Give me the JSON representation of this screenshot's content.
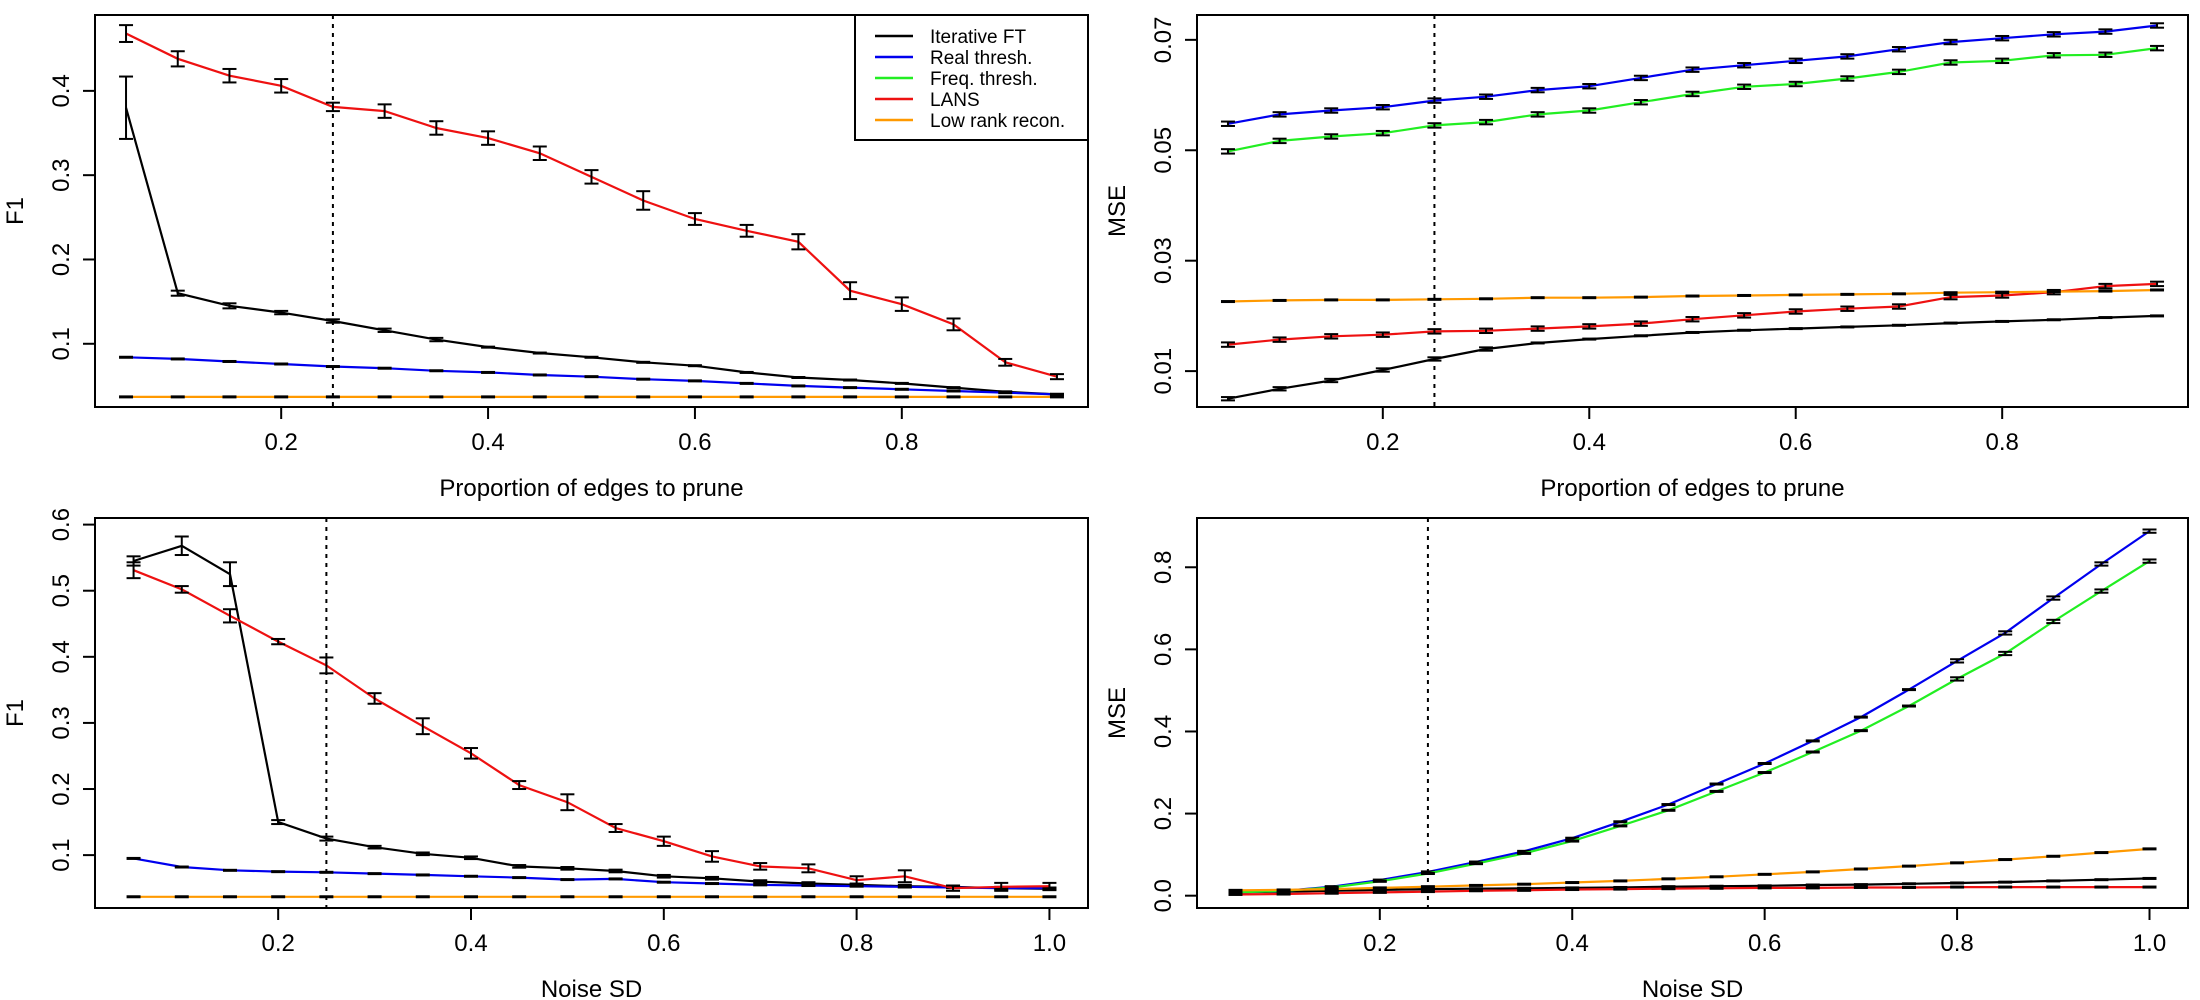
{
  "colors": {
    "Iterative FT": "#000000",
    "Real thresh.": "#0000ee",
    "Freq. thresh.": "#22ee22",
    "LANS": "#ee1111",
    "Low rank recon.": "#ff9900"
  },
  "legend": {
    "entries": [
      "Iterative FT",
      "Real thresh.",
      "Freq. thresh.",
      "LANS",
      "Low rank recon."
    ]
  },
  "chart_data": [
    {
      "type": "line",
      "panel": "top-left",
      "xlabel": "Proportion of edges to prune",
      "ylabel": "F1",
      "xlim": [
        0.02,
        0.98
      ],
      "ylim": [
        0.025,
        0.49
      ],
      "xticks": [
        "0.2",
        "0.4",
        "0.6",
        "0.8"
      ],
      "yticks": [
        "0.1",
        "0.2",
        "0.3",
        "0.4"
      ],
      "vline": 0.25,
      "legend_position": "top-right",
      "x": [
        0.05,
        0.1,
        0.15,
        0.2,
        0.25,
        0.3,
        0.35,
        0.4,
        0.45,
        0.5,
        0.55,
        0.6,
        0.65,
        0.7,
        0.75,
        0.8,
        0.85,
        0.9,
        0.95
      ],
      "series": [
        {
          "name": "Iterative FT",
          "values": [
            0.38,
            0.16,
            0.145,
            0.137,
            0.127,
            0.116,
            0.105,
            0.096,
            0.089,
            0.084,
            0.078,
            0.074,
            0.066,
            0.06,
            0.057,
            0.053,
            0.048,
            0.043,
            0.04
          ],
          "err": [
            0.037,
            0.003,
            0.003,
            0.002,
            0.002,
            0.002,
            0.002,
            0.001,
            0.001,
            0.001,
            0.001,
            0.001,
            0.001,
            0.001,
            0.001,
            0.001,
            0.001,
            0.001,
            0.001
          ]
        },
        {
          "name": "Real thresh.",
          "values": [
            0.084,
            0.082,
            0.079,
            0.076,
            0.073,
            0.071,
            0.068,
            0.066,
            0.063,
            0.061,
            0.058,
            0.056,
            0.053,
            0.05,
            0.048,
            0.046,
            0.044,
            0.042,
            0.04
          ],
          "err": [
            0.001,
            0.001,
            0.001,
            0.001,
            0.001,
            0.001,
            0.001,
            0.001,
            0.001,
            0.001,
            0.001,
            0.001,
            0.001,
            0.001,
            0.001,
            0.001,
            0.001,
            0.001,
            0.001
          ]
        },
        {
          "name": "LANS",
          "values": [
            0.468,
            0.438,
            0.418,
            0.406,
            0.381,
            0.376,
            0.356,
            0.344,
            0.326,
            0.298,
            0.27,
            0.248,
            0.234,
            0.221,
            0.163,
            0.147,
            0.123,
            0.078,
            0.061
          ],
          "err": [
            0.01,
            0.009,
            0.008,
            0.008,
            0.005,
            0.008,
            0.008,
            0.008,
            0.008,
            0.008,
            0.011,
            0.007,
            0.007,
            0.009,
            0.01,
            0.008,
            0.007,
            0.004,
            0.003
          ]
        },
        {
          "name": "Low rank recon.",
          "values": [
            0.037,
            0.037,
            0.037,
            0.037,
            0.037,
            0.037,
            0.037,
            0.037,
            0.037,
            0.037,
            0.037,
            0.037,
            0.037,
            0.037,
            0.037,
            0.037,
            0.037,
            0.037,
            0.037
          ],
          "err": [
            0,
            0,
            0,
            0,
            0,
            0,
            0,
            0,
            0,
            0,
            0,
            0,
            0,
            0,
            0,
            0,
            0,
            0,
            0
          ]
        }
      ]
    },
    {
      "type": "line",
      "panel": "top-right",
      "xlabel": "Proportion of edges to prune",
      "ylabel": "MSE",
      "xlim": [
        0.02,
        0.98
      ],
      "ylim": [
        0.0035,
        0.0745
      ],
      "xticks": [
        "0.2",
        "0.4",
        "0.6",
        "0.8"
      ],
      "yticks": [
        "0.01",
        "0.03",
        "0.05",
        "0.07"
      ],
      "vline": 0.25,
      "x": [
        0.05,
        0.1,
        0.15,
        0.2,
        0.25,
        0.3,
        0.35,
        0.4,
        0.45,
        0.5,
        0.55,
        0.6,
        0.65,
        0.7,
        0.75,
        0.8,
        0.85,
        0.9,
        0.95
      ],
      "series": [
        {
          "name": "Iterative FT",
          "values": [
            0.005,
            0.0068,
            0.0083,
            0.0102,
            0.0122,
            0.014,
            0.0151,
            0.0158,
            0.0164,
            0.017,
            0.0174,
            0.0177,
            0.018,
            0.0183,
            0.0187,
            0.019,
            0.0193,
            0.0197,
            0.02
          ],
          "err": [
            0.0003,
            0.0003,
            0.0003,
            0.0003,
            0.0003,
            0.0003,
            0.0002,
            0.0002,
            0.0002,
            0.0002,
            0.0002,
            0.0002,
            0.0002,
            0.0002,
            0.0002,
            0.0002,
            0.0002,
            0.0002,
            0.0002
          ]
        },
        {
          "name": "Real thresh.",
          "values": [
            0.0548,
            0.0565,
            0.0572,
            0.0578,
            0.059,
            0.0597,
            0.0609,
            0.0616,
            0.0631,
            0.0646,
            0.0654,
            0.0662,
            0.067,
            0.0683,
            0.0696,
            0.0703,
            0.071,
            0.0715,
            0.0726
          ],
          "err": [
            0.0004,
            0.0004,
            0.0004,
            0.0004,
            0.0004,
            0.0004,
            0.0004,
            0.0004,
            0.0004,
            0.0004,
            0.0004,
            0.0004,
            0.0004,
            0.0004,
            0.0004,
            0.0004,
            0.0004,
            0.0004,
            0.0004
          ]
        },
        {
          "name": "Freq. thresh.",
          "values": [
            0.0498,
            0.0517,
            0.0525,
            0.0531,
            0.0545,
            0.0551,
            0.0565,
            0.0572,
            0.0587,
            0.0602,
            0.0615,
            0.062,
            0.063,
            0.0642,
            0.0659,
            0.0662,
            0.0672,
            0.0673,
            0.0685
          ],
          "err": [
            0.0004,
            0.0004,
            0.0004,
            0.0004,
            0.0004,
            0.0004,
            0.0004,
            0.0004,
            0.0004,
            0.0004,
            0.0004,
            0.0004,
            0.0004,
            0.0004,
            0.0004,
            0.0004,
            0.0004,
            0.0004,
            0.0004
          ]
        },
        {
          "name": "LANS",
          "values": [
            0.0148,
            0.0157,
            0.0163,
            0.0166,
            0.0172,
            0.0173,
            0.0177,
            0.0181,
            0.0186,
            0.0194,
            0.0201,
            0.0208,
            0.0213,
            0.0217,
            0.0234,
            0.0237,
            0.0243,
            0.0254,
            0.0258
          ],
          "err": [
            0.0004,
            0.0004,
            0.0004,
            0.0004,
            0.0004,
            0.0004,
            0.0004,
            0.0004,
            0.0004,
            0.0004,
            0.0004,
            0.0004,
            0.0004,
            0.0004,
            0.0004,
            0.0004,
            0.0004,
            0.0004,
            0.0004
          ]
        },
        {
          "name": "Low rank recon.",
          "values": [
            0.0226,
            0.0228,
            0.0229,
            0.0229,
            0.023,
            0.0231,
            0.0233,
            0.0233,
            0.0234,
            0.0236,
            0.0237,
            0.0238,
            0.0239,
            0.024,
            0.0242,
            0.0243,
            0.0244,
            0.0245,
            0.0247
          ],
          "err": [
            0.0002,
            0.0002,
            0.0002,
            0.0002,
            0.0002,
            0.0002,
            0.0002,
            0.0002,
            0.0002,
            0.0002,
            0.0002,
            0.0002,
            0.0002,
            0.0002,
            0.0002,
            0.0002,
            0.0002,
            0.0002,
            0.0002
          ]
        }
      ]
    },
    {
      "type": "line",
      "panel": "bottom-left",
      "xlabel": "Noise SD",
      "ylabel": "F1",
      "xlim": [
        0.01,
        1.04
      ],
      "ylim": [
        0.02,
        0.61
      ],
      "xticks": [
        "0.2",
        "0.4",
        "0.6",
        "0.8",
        "1.0"
      ],
      "yticks": [
        "0.1",
        "0.2",
        "0.3",
        "0.4",
        "0.5",
        "0.6"
      ],
      "vline": 0.25,
      "x": [
        0.05,
        0.1,
        0.15,
        0.2,
        0.25,
        0.3,
        0.35,
        0.4,
        0.45,
        0.5,
        0.55,
        0.6,
        0.65,
        0.7,
        0.75,
        0.8,
        0.85,
        0.9,
        0.95,
        1.0
      ],
      "series": [
        {
          "name": "Iterative FT",
          "values": [
            0.545,
            0.568,
            0.525,
            0.15,
            0.125,
            0.112,
            0.102,
            0.096,
            0.083,
            0.08,
            0.076,
            0.068,
            0.065,
            0.06,
            0.057,
            0.055,
            0.053,
            0.052,
            0.05,
            0.049
          ],
          "err": [
            0.007,
            0.014,
            0.018,
            0.003,
            0.003,
            0.002,
            0.002,
            0.002,
            0.002,
            0.002,
            0.002,
            0.002,
            0.002,
            0.002,
            0.002,
            0.002,
            0.002,
            0.002,
            0.002,
            0.002
          ]
        },
        {
          "name": "Real thresh.",
          "values": [
            0.095,
            0.082,
            0.077,
            0.075,
            0.074,
            0.072,
            0.07,
            0.068,
            0.066,
            0.063,
            0.064,
            0.059,
            0.057,
            0.055,
            0.054,
            0.053,
            0.052,
            0.051,
            0.05,
            0.05
          ],
          "err": [
            0.001,
            0.001,
            0.001,
            0.001,
            0.001,
            0.001,
            0.001,
            0.001,
            0.001,
            0.001,
            0.001,
            0.001,
            0.001,
            0.001,
            0.001,
            0.001,
            0.001,
            0.001,
            0.001,
            0.001
          ]
        },
        {
          "name": "LANS",
          "values": [
            0.531,
            0.502,
            0.462,
            0.423,
            0.387,
            0.337,
            0.295,
            0.254,
            0.206,
            0.18,
            0.141,
            0.121,
            0.098,
            0.083,
            0.08,
            0.062,
            0.068,
            0.05,
            0.052,
            0.053
          ],
          "err": [
            0.012,
            0.005,
            0.01,
            0.004,
            0.012,
            0.008,
            0.012,
            0.008,
            0.006,
            0.012,
            0.006,
            0.007,
            0.008,
            0.005,
            0.006,
            0.006,
            0.009,
            0.004,
            0.006,
            0.005
          ]
        },
        {
          "name": "Low rank recon.",
          "values": [
            0.037,
            0.037,
            0.037,
            0.037,
            0.037,
            0.037,
            0.037,
            0.037,
            0.037,
            0.037,
            0.037,
            0.037,
            0.037,
            0.037,
            0.037,
            0.037,
            0.037,
            0.037,
            0.037,
            0.037
          ],
          "err": [
            0,
            0,
            0,
            0,
            0,
            0,
            0,
            0,
            0,
            0,
            0,
            0,
            0,
            0,
            0,
            0,
            0,
            0,
            0,
            0
          ]
        }
      ]
    },
    {
      "type": "line",
      "panel": "bottom-right",
      "xlabel": "Noise SD",
      "ylabel": "MSE",
      "xlim": [
        0.01,
        1.04
      ],
      "ylim": [
        -0.03,
        0.92
      ],
      "xticks": [
        "0.2",
        "0.4",
        "0.6",
        "0.8",
        "1.0"
      ],
      "yticks": [
        "0.0",
        "0.2",
        "0.4",
        "0.6",
        "0.8"
      ],
      "vline": 0.25,
      "x": [
        0.05,
        0.1,
        0.15,
        0.2,
        0.25,
        0.3,
        0.35,
        0.4,
        0.45,
        0.5,
        0.55,
        0.6,
        0.65,
        0.7,
        0.75,
        0.8,
        0.85,
        0.9,
        0.95,
        1.0
      ],
      "series": [
        {
          "name": "Iterative FT",
          "values": [
            0.008,
            0.01,
            0.012,
            0.014,
            0.016,
            0.017,
            0.018,
            0.019,
            0.02,
            0.022,
            0.023,
            0.024,
            0.026,
            0.027,
            0.029,
            0.031,
            0.033,
            0.036,
            0.039,
            0.042
          ],
          "err": [
            0.001,
            0.001,
            0.001,
            0.001,
            0.001,
            0.001,
            0.001,
            0.001,
            0.001,
            0.001,
            0.001,
            0.001,
            0.001,
            0.001,
            0.001,
            0.001,
            0.001,
            0.001,
            0.001,
            0.001
          ]
        },
        {
          "name": "Real thresh.",
          "values": [
            0.008,
            0.012,
            0.022,
            0.038,
            0.058,
            0.082,
            0.108,
            0.14,
            0.18,
            0.222,
            0.272,
            0.322,
            0.377,
            0.435,
            0.502,
            0.572,
            0.64,
            0.725,
            0.808,
            0.888
          ],
          "err": [
            0.002,
            0.002,
            0.002,
            0.002,
            0.002,
            0.002,
            0.003,
            0.003,
            0.003,
            0.003,
            0.003,
            0.003,
            0.003,
            0.003,
            0.003,
            0.004,
            0.004,
            0.004,
            0.004,
            0.004
          ]
        },
        {
          "name": "Freq. thresh.",
          "values": [
            0.008,
            0.012,
            0.02,
            0.035,
            0.054,
            0.078,
            0.103,
            0.133,
            0.17,
            0.208,
            0.254,
            0.3,
            0.35,
            0.402,
            0.462,
            0.528,
            0.59,
            0.668,
            0.742,
            0.815
          ],
          "err": [
            0.002,
            0.002,
            0.002,
            0.002,
            0.002,
            0.002,
            0.003,
            0.003,
            0.003,
            0.003,
            0.003,
            0.003,
            0.003,
            0.003,
            0.003,
            0.004,
            0.004,
            0.004,
            0.004,
            0.004
          ]
        },
        {
          "name": "LANS",
          "values": [
            0.003,
            0.004,
            0.006,
            0.008,
            0.01,
            0.012,
            0.013,
            0.015,
            0.016,
            0.017,
            0.018,
            0.019,
            0.019,
            0.02,
            0.02,
            0.021,
            0.021,
            0.021,
            0.021,
            0.021
          ],
          "err": [
            0.001,
            0.001,
            0.001,
            0.001,
            0.001,
            0.001,
            0.001,
            0.001,
            0.001,
            0.001,
            0.001,
            0.001,
            0.001,
            0.001,
            0.001,
            0.001,
            0.001,
            0.001,
            0.001,
            0.001
          ]
        },
        {
          "name": "Low rank recon.",
          "values": [
            0.013,
            0.014,
            0.016,
            0.019,
            0.022,
            0.025,
            0.028,
            0.032,
            0.036,
            0.041,
            0.046,
            0.052,
            0.058,
            0.065,
            0.072,
            0.08,
            0.088,
            0.096,
            0.105,
            0.114
          ],
          "err": [
            0.001,
            0.001,
            0.001,
            0.001,
            0.001,
            0.001,
            0.001,
            0.001,
            0.001,
            0.001,
            0.001,
            0.001,
            0.001,
            0.001,
            0.001,
            0.001,
            0.001,
            0.001,
            0.001,
            0.001
          ]
        }
      ]
    }
  ]
}
